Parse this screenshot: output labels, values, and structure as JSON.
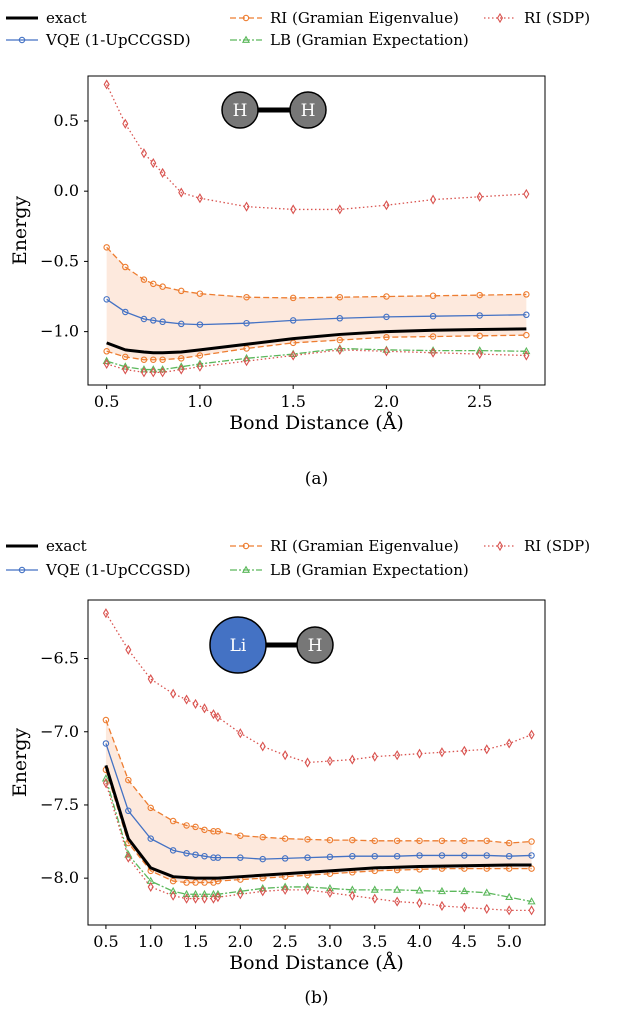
{
  "figure": {
    "legend": [
      {
        "key": "exact",
        "label": "exact"
      },
      {
        "key": "vqe",
        "label": "VQE (1-UpCCGSD)"
      },
      {
        "key": "ri_eig",
        "label": "RI (Gramian Eigenvalue)"
      },
      {
        "key": "lb",
        "label": "LB (Gramian Expectation)"
      },
      {
        "key": "ri_sdp",
        "label": "RI (SDP)"
      }
    ],
    "colors": {
      "exact": "#000000",
      "vqe": "#4472c4",
      "ri_eig": "#ed7d31",
      "lb": "#5cb85c",
      "ri_sdp": "#d9534f",
      "band": "#fde9dd",
      "h_atom": "#777777",
      "li_atom": "#4472c4"
    }
  },
  "chart_data": [
    {
      "type": "line",
      "caption": "(a)",
      "xlabel": "Bond Distance (Å)",
      "ylabel": "Energy",
      "xlim": [
        0.4,
        2.85
      ],
      "ylim": [
        -1.38,
        0.82
      ],
      "xticks": [
        "0.5",
        "1.0",
        "1.5",
        "2.0",
        "2.5"
      ],
      "yticks": [
        "0.5",
        "0.0",
        "−0.5",
        "−1.0"
      ],
      "molecule": [
        "H",
        "H"
      ],
      "series": [
        {
          "key": "exact",
          "x": [
            0.5,
            0.6,
            0.7,
            0.75,
            0.8,
            0.9,
            1.0,
            1.25,
            1.5,
            1.75,
            2.0,
            2.25,
            2.5,
            2.75
          ],
          "y": [
            -1.08,
            -1.13,
            -1.145,
            -1.15,
            -1.15,
            -1.145,
            -1.13,
            -1.09,
            -1.05,
            -1.02,
            -1.0,
            -0.99,
            -0.985,
            -0.98
          ]
        },
        {
          "key": "vqe",
          "x": [
            0.5,
            0.6,
            0.7,
            0.75,
            0.8,
            0.9,
            1.0,
            1.25,
            1.5,
            1.75,
            2.0,
            2.25,
            2.5,
            2.75
          ],
          "y": [
            -0.77,
            -0.86,
            -0.91,
            -0.92,
            -0.93,
            -0.945,
            -0.95,
            -0.94,
            -0.92,
            -0.905,
            -0.895,
            -0.89,
            -0.885,
            -0.88
          ]
        },
        {
          "key": "ri_eig",
          "x": [
            0.5,
            0.6,
            0.7,
            0.75,
            0.8,
            0.9,
            1.0,
            1.25,
            1.5,
            1.75,
            2.0,
            2.25,
            2.5,
            2.75
          ],
          "y": [
            -0.4,
            -0.54,
            -0.63,
            -0.66,
            -0.68,
            -0.71,
            -0.73,
            -0.755,
            -0.76,
            -0.755,
            -0.75,
            -0.745,
            -0.74,
            -0.735
          ]
        },
        {
          "key": "ri_eig",
          "x": [
            0.5,
            0.6,
            0.7,
            0.75,
            0.8,
            0.9,
            1.0,
            1.25,
            1.5,
            1.75,
            2.0,
            2.25,
            2.5,
            2.75
          ],
          "y": [
            -1.14,
            -1.18,
            -1.2,
            -1.2,
            -1.2,
            -1.19,
            -1.17,
            -1.12,
            -1.08,
            -1.06,
            -1.04,
            -1.035,
            -1.03,
            -1.025
          ]
        },
        {
          "key": "lb",
          "x": [
            0.5,
            0.6,
            0.7,
            0.75,
            0.8,
            0.9,
            1.0,
            1.25,
            1.5,
            1.75,
            2.0,
            2.25,
            2.5,
            2.75
          ],
          "y": [
            -1.21,
            -1.25,
            -1.27,
            -1.27,
            -1.27,
            -1.25,
            -1.23,
            -1.19,
            -1.16,
            -1.12,
            -1.13,
            -1.135,
            -1.135,
            -1.14
          ]
        },
        {
          "key": "ri_sdp",
          "x": [
            0.5,
            0.6,
            0.7,
            0.75,
            0.8,
            0.9,
            1.0,
            1.25,
            1.5,
            1.75,
            2.0,
            2.25,
            2.5,
            2.75
          ],
          "y": [
            0.76,
            0.48,
            0.27,
            0.2,
            0.13,
            -0.01,
            -0.05,
            -0.11,
            -0.13,
            -0.13,
            -0.1,
            -0.06,
            -0.04,
            -0.02
          ]
        },
        {
          "key": "ri_sdp",
          "x": [
            0.5,
            0.6,
            0.7,
            0.75,
            0.8,
            0.9,
            1.0,
            1.25,
            1.5,
            1.75,
            2.0,
            2.25,
            2.5,
            2.75
          ],
          "y": [
            -1.23,
            -1.27,
            -1.29,
            -1.29,
            -1.29,
            -1.27,
            -1.25,
            -1.21,
            -1.17,
            -1.13,
            -1.14,
            -1.15,
            -1.16,
            -1.17
          ]
        }
      ],
      "band": {
        "key": "band",
        "x": [
          0.5,
          0.6,
          0.7,
          0.75,
          0.8,
          0.9,
          1.0,
          1.25,
          1.5,
          1.75,
          2.0,
          2.25,
          2.5,
          2.75
        ],
        "upper": [
          -0.4,
          -0.54,
          -0.63,
          -0.66,
          -0.68,
          -0.71,
          -0.73,
          -0.755,
          -0.76,
          -0.755,
          -0.75,
          -0.745,
          -0.74,
          -0.735
        ],
        "lower": [
          -1.14,
          -1.18,
          -1.2,
          -1.2,
          -1.2,
          -1.19,
          -1.17,
          -1.12,
          -1.08,
          -1.06,
          -1.04,
          -1.035,
          -1.03,
          -1.025
        ]
      }
    },
    {
      "type": "line",
      "caption": "(b)",
      "xlabel": "Bond Distance (Å)",
      "ylabel": "Energy",
      "xlim": [
        0.3,
        5.4
      ],
      "ylim": [
        -8.32,
        -6.1
      ],
      "xticks": [
        "0.5",
        "1.0",
        "1.5",
        "2.0",
        "2.5",
        "3.0",
        "3.5",
        "4.0",
        "4.5",
        "5.0"
      ],
      "yticks": [
        "−6.5",
        "−7.0",
        "−7.5",
        "−8.0"
      ],
      "molecule": [
        "Li",
        "H"
      ],
      "series": [
        {
          "key": "exact",
          "x": [
            0.5,
            0.75,
            1.0,
            1.25,
            1.5,
            1.75,
            2.0,
            2.5,
            3.0,
            3.5,
            4.0,
            4.5,
            5.0,
            5.25
          ],
          "y": [
            -7.23,
            -7.73,
            -7.93,
            -7.99,
            -8.0,
            -8.0,
            -7.99,
            -7.97,
            -7.95,
            -7.93,
            -7.92,
            -7.915,
            -7.91,
            -7.91
          ]
        },
        {
          "key": "vqe",
          "x": [
            0.5,
            0.75,
            1.0,
            1.25,
            1.4,
            1.5,
            1.6,
            1.7,
            1.75,
            2.0,
            2.25,
            2.5,
            2.75,
            3.0,
            3.25,
            3.5,
            3.75,
            4.0,
            4.25,
            4.5,
            4.75,
            5.0,
            5.25
          ],
          "y": [
            -7.08,
            -7.54,
            -7.73,
            -7.81,
            -7.83,
            -7.84,
            -7.85,
            -7.86,
            -7.86,
            -7.86,
            -7.87,
            -7.865,
            -7.86,
            -7.855,
            -7.85,
            -7.85,
            -7.85,
            -7.845,
            -7.845,
            -7.845,
            -7.845,
            -7.85,
            -7.845
          ]
        },
        {
          "key": "ri_eig",
          "x": [
            0.5,
            0.75,
            1.0,
            1.25,
            1.4,
            1.5,
            1.6,
            1.7,
            1.75,
            2.0,
            2.25,
            2.5,
            2.75,
            3.0,
            3.25,
            3.5,
            3.75,
            4.0,
            4.25,
            4.5,
            4.75,
            5.0,
            5.25
          ],
          "y": [
            -6.92,
            -7.33,
            -7.52,
            -7.61,
            -7.64,
            -7.65,
            -7.67,
            -7.68,
            -7.68,
            -7.71,
            -7.72,
            -7.73,
            -7.735,
            -7.74,
            -7.74,
            -7.745,
            -7.745,
            -7.745,
            -7.745,
            -7.745,
            -7.745,
            -7.76,
            -7.75
          ]
        },
        {
          "key": "ri_eig",
          "x": [
            0.5,
            0.75,
            1.0,
            1.25,
            1.4,
            1.5,
            1.6,
            1.7,
            1.75,
            2.0,
            2.25,
            2.5,
            2.75,
            3.0,
            3.25,
            3.5,
            3.75,
            4.0,
            4.25,
            4.5,
            4.75,
            5.0,
            5.25
          ],
          "y": [
            -7.26,
            -7.76,
            -7.95,
            -8.02,
            -8.03,
            -8.03,
            -8.03,
            -8.03,
            -8.02,
            -8.01,
            -8.0,
            -7.99,
            -7.98,
            -7.97,
            -7.96,
            -7.95,
            -7.945,
            -7.94,
            -7.935,
            -7.935,
            -7.935,
            -7.935,
            -7.935
          ]
        },
        {
          "key": "lb",
          "x": [
            0.5,
            0.75,
            1.0,
            1.25,
            1.4,
            1.5,
            1.6,
            1.7,
            1.75,
            2.0,
            2.25,
            2.5,
            2.75,
            3.0,
            3.25,
            3.5,
            3.75,
            4.0,
            4.25,
            4.5,
            4.75,
            5.0,
            5.25
          ],
          "y": [
            -7.32,
            -7.84,
            -8.02,
            -8.09,
            -8.11,
            -8.11,
            -8.11,
            -8.11,
            -8.11,
            -8.09,
            -8.07,
            -8.06,
            -8.06,
            -8.07,
            -8.08,
            -8.08,
            -8.08,
            -8.085,
            -8.09,
            -8.09,
            -8.1,
            -8.13,
            -8.16
          ]
        },
        {
          "key": "ri_sdp",
          "x": [
            0.5,
            0.75,
            1.0,
            1.25,
            1.4,
            1.5,
            1.6,
            1.7,
            1.75,
            2.0,
            2.25,
            2.5,
            2.75,
            3.0,
            3.25,
            3.5,
            3.75,
            4.0,
            4.25,
            4.5,
            4.75,
            5.0,
            5.25
          ],
          "y": [
            -6.19,
            -6.44,
            -6.64,
            -6.74,
            -6.78,
            -6.81,
            -6.84,
            -6.88,
            -6.9,
            -7.01,
            -7.1,
            -7.16,
            -7.21,
            -7.2,
            -7.19,
            -7.17,
            -7.16,
            -7.15,
            -7.14,
            -7.13,
            -7.12,
            -7.08,
            -7.02
          ]
        },
        {
          "key": "ri_sdp",
          "x": [
            0.5,
            0.75,
            1.0,
            1.25,
            1.4,
            1.5,
            1.6,
            1.7,
            1.75,
            2.0,
            2.25,
            2.5,
            2.75,
            3.0,
            3.25,
            3.5,
            3.75,
            4.0,
            4.25,
            4.5,
            4.75,
            5.0,
            5.25
          ],
          "y": [
            -7.35,
            -7.86,
            -8.06,
            -8.12,
            -8.14,
            -8.14,
            -8.14,
            -8.14,
            -8.13,
            -8.11,
            -8.09,
            -8.08,
            -8.08,
            -8.1,
            -8.12,
            -8.14,
            -8.16,
            -8.17,
            -8.19,
            -8.2,
            -8.21,
            -8.22,
            -8.22
          ]
        }
      ],
      "band": {
        "key": "band",
        "x": [
          0.5,
          0.75,
          1.0,
          1.25,
          1.4,
          1.5,
          1.6,
          1.7,
          1.75,
          2.0,
          2.25,
          2.5,
          2.75,
          3.0,
          3.25,
          3.5,
          3.75,
          4.0,
          4.25,
          4.5,
          4.75,
          5.0,
          5.25
        ],
        "upper": [
          -6.92,
          -7.33,
          -7.52,
          -7.61,
          -7.64,
          -7.65,
          -7.67,
          -7.68,
          -7.68,
          -7.71,
          -7.72,
          -7.73,
          -7.735,
          -7.74,
          -7.74,
          -7.745,
          -7.745,
          -7.745,
          -7.745,
          -7.745,
          -7.745,
          -7.76,
          -7.75
        ],
        "lower": [
          -7.26,
          -7.76,
          -7.95,
          -8.02,
          -8.03,
          -8.03,
          -8.03,
          -8.03,
          -8.02,
          -8.01,
          -8.0,
          -7.99,
          -7.98,
          -7.97,
          -7.96,
          -7.95,
          -7.945,
          -7.94,
          -7.935,
          -7.935,
          -7.935,
          -7.935,
          -7.935
        ]
      }
    }
  ]
}
